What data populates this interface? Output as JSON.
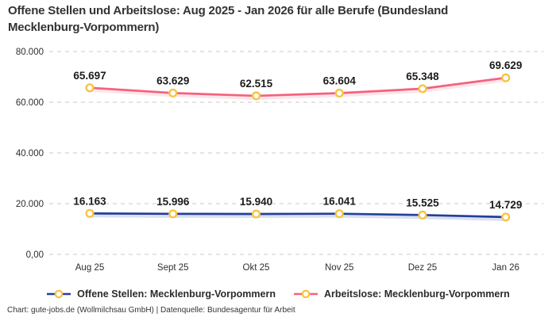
{
  "title": {
    "line1": "Offene Stellen und Arbeitslose: Aug 2025 - Jan 2026 für alle Berufe (Bundesland",
    "line2": "Mecklenburg-Vorpommern)"
  },
  "footer": {
    "credit": "Chart: gute-jobs.de (Wollmilchsau GmbH) | Datenquelle: Bundesagentur für Arbeit"
  },
  "colors": {
    "offene_stellen_line": "#223f9a",
    "arbeitslose_line": "#f4627e",
    "marker_ring": "#f8c23d",
    "gridline": "#c9c9c9",
    "text": "#333333"
  },
  "chart_data": {
    "type": "line",
    "title": "Offene Stellen und Arbeitslose: Aug 2025 - Jan 2026 für alle Berufe (Bundesland Mecklenburg-Vorpommern)",
    "categories": [
      "Aug 25",
      "Sept 25",
      "Okt 25",
      "Nov 25",
      "Dez 25",
      "Jan 26"
    ],
    "series": [
      {
        "name": "Offene Stellen: Mecklenburg-Vorpommern",
        "color": "#223f9a",
        "values": [
          16163,
          15996,
          15940,
          16041,
          15525,
          14729
        ],
        "labels": [
          "16.163",
          "15.996",
          "15.940",
          "16.041",
          "15.525",
          "14.729"
        ]
      },
      {
        "name": "Arbeitslose: Mecklenburg-Vorpommern",
        "color": "#f4627e",
        "values": [
          65697,
          63629,
          62515,
          63604,
          65348,
          69629
        ],
        "labels": [
          "65.697",
          "63.629",
          "62.515",
          "63.604",
          "65.348",
          "69.629"
        ]
      }
    ],
    "y_ticks": [
      {
        "value": 0,
        "label": "0,00"
      },
      {
        "value": 20000,
        "label": "20.000"
      },
      {
        "value": 40000,
        "label": "40.000"
      },
      {
        "value": 60000,
        "label": "60.000"
      },
      {
        "value": 80000,
        "label": "80.000"
      }
    ],
    "ylim": [
      0,
      80000
    ],
    "xlabel": "",
    "ylabel": "",
    "grid": "horizontal-dashed",
    "legend_position": "bottom",
    "marker": {
      "shape": "ring",
      "color": "#f8c23d"
    }
  }
}
